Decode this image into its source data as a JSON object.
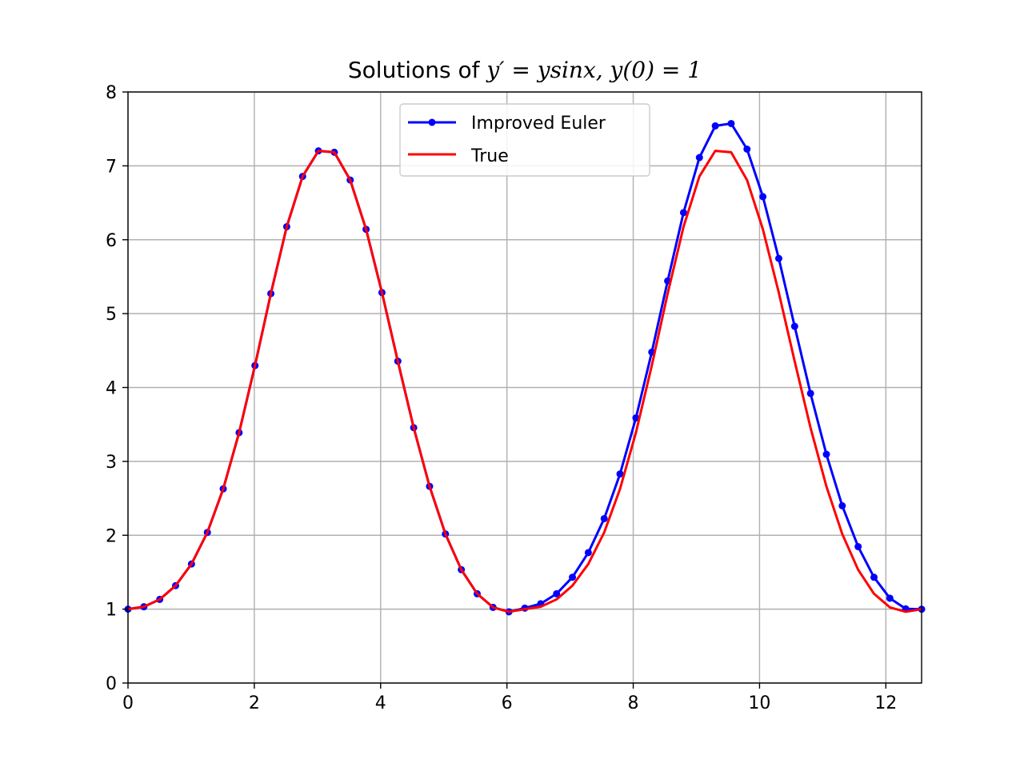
{
  "chart_data": {
    "type": "line",
    "title": {
      "prefix": "Solutions of ",
      "math": "y′ = ysinx, y(0) = 1"
    },
    "xlabel": "",
    "ylabel": "",
    "xlim": [
      0,
      12.566
    ],
    "ylim": [
      0,
      8
    ],
    "xticks": [
      0,
      2,
      4,
      6,
      8,
      10,
      12
    ],
    "yticks": [
      0,
      1,
      2,
      3,
      4,
      5,
      6,
      7,
      8
    ],
    "grid": true,
    "legend_position": "upper center",
    "series": [
      {
        "name": "Improved Euler",
        "color": "#0000ff",
        "marker": "dot",
        "x": [
          0,
          0.2513,
          0.5027,
          0.754,
          1.0053,
          1.2566,
          1.508,
          1.7593,
          2.0106,
          2.262,
          2.5133,
          2.7646,
          3.0159,
          3.2673,
          3.5186,
          3.7699,
          4.0212,
          4.2726,
          4.5239,
          4.7752,
          5.0265,
          5.2779,
          5.5292,
          5.7805,
          6.0319,
          6.2832,
          6.5345,
          6.7858,
          7.0372,
          7.2885,
          7.5398,
          7.7911,
          8.0425,
          8.2938,
          8.5451,
          8.7965,
          9.0478,
          9.2991,
          9.5504,
          9.8018,
          10.0531,
          10.3044,
          10.5558,
          10.8071,
          11.0584,
          11.3097,
          11.5611,
          11.8124,
          12.0637,
          12.315,
          12.5664
        ],
        "y": [
          1.0,
          1.032,
          1.132,
          1.318,
          1.611,
          2.038,
          2.628,
          3.389,
          4.297,
          5.271,
          6.176,
          6.857,
          7.203,
          7.184,
          6.808,
          6.141,
          5.285,
          4.356,
          3.456,
          2.662,
          2.017,
          1.534,
          1.208,
          1.024,
          0.964,
          1.014,
          1.073,
          1.208,
          1.432,
          1.765,
          2.225,
          2.83,
          3.588,
          4.479,
          5.442,
          6.367,
          7.112,
          7.541,
          7.573,
          7.226,
          6.583,
          5.747,
          4.828,
          3.92,
          3.096,
          2.399,
          1.846,
          1.431,
          1.148,
          1.004,
          0.999
        ]
      },
      {
        "name": "True",
        "color": "#ff0000",
        "marker": "none",
        "x": [
          0,
          0.2513,
          0.5027,
          0.754,
          1.0053,
          1.2566,
          1.508,
          1.7593,
          2.0106,
          2.262,
          2.5133,
          2.7646,
          3.0159,
          3.2673,
          3.5186,
          3.7699,
          4.0212,
          4.2726,
          4.5239,
          4.7752,
          5.0265,
          5.2779,
          5.5292,
          5.7805,
          6.0319,
          6.2832,
          6.5345,
          6.7858,
          7.0372,
          7.2885,
          7.5398,
          7.7911,
          8.0425,
          8.2938,
          8.5451,
          8.7965,
          9.0478,
          9.2991,
          9.5504,
          9.8018,
          10.0531,
          10.3044,
          10.5558,
          10.8071,
          11.0584,
          11.3097,
          11.5611,
          11.8124,
          12.0637,
          12.315,
          12.5664
        ],
        "y": [
          1.0,
          1.032,
          1.132,
          1.318,
          1.611,
          2.038,
          2.628,
          3.389,
          4.297,
          5.271,
          6.176,
          6.857,
          7.203,
          7.184,
          6.808,
          6.141,
          5.285,
          4.356,
          3.456,
          2.662,
          2.017,
          1.534,
          1.208,
          1.024,
          0.964,
          1.0,
          1.032,
          1.132,
          1.318,
          1.611,
          2.038,
          2.628,
          3.389,
          4.297,
          5.271,
          6.176,
          6.857,
          7.203,
          7.184,
          6.808,
          6.141,
          5.285,
          4.356,
          3.456,
          2.662,
          2.017,
          1.534,
          1.208,
          1.024,
          0.964,
          1.0
        ]
      }
    ],
    "grid_color": "#b0b0b0",
    "axes_color": "#000000"
  }
}
